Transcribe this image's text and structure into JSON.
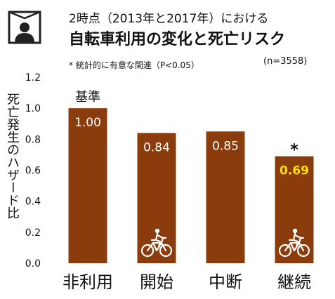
{
  "header": {
    "title_line1": "2時点（2013年と2017年）における",
    "title_line2": "自転車利用の変化と死亡リスク",
    "significance_note": "* 統計的に有意な関連（P<0.05）",
    "sample_size": "(n=3558)"
  },
  "icons": {
    "header_icon": "person-portrait-icon",
    "bar_icon": "bicycle-rider-icon"
  },
  "colors": {
    "bar": "#8b3c0c",
    "highlight_value": "#ffe000"
  },
  "chart_data": {
    "type": "bar",
    "title": "自転車利用の変化と死亡リスク",
    "ylabel": "死亡発生のハザード比",
    "categories": [
      "非利用",
      "開始",
      "中断",
      "継続"
    ],
    "values": [
      1.0,
      0.84,
      0.85,
      0.69
    ],
    "value_labels": [
      "1.00",
      "0.84",
      "0.85",
      "0.69"
    ],
    "ylim": [
      0,
      1.2
    ],
    "yticks": [
      "0.0",
      "0.2",
      "0.4",
      "0.6",
      "0.8",
      "1.0",
      "1.2"
    ],
    "reference_label": "基準",
    "reference_category": "非利用",
    "significant_marker": "*",
    "significant_categories": [
      "継続"
    ],
    "bicycle_icon_categories": [
      "開始",
      "継続"
    ],
    "grid": false,
    "legend": "none"
  }
}
